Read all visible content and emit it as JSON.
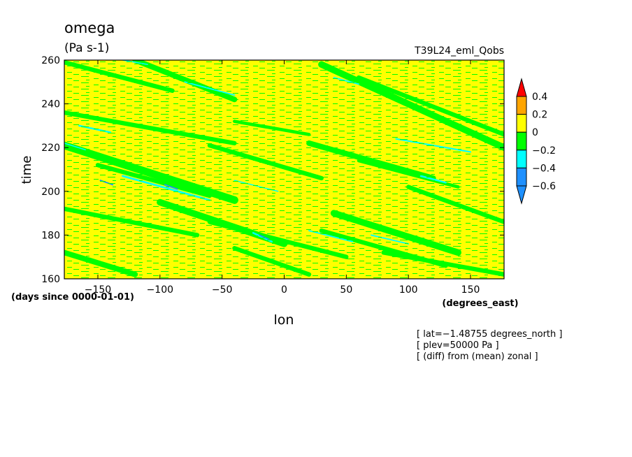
{
  "chart_data": {
    "type": "heatmap",
    "title": "omega",
    "units": "(Pa s-1)",
    "experiment": "T39L24_eml_Qobs",
    "xlabel": "lon",
    "x_units": "(degrees_east)",
    "ylabel": "time",
    "y_units": "(days since 0000-01-01)",
    "xlim": [
      -177,
      177
    ],
    "ylim": [
      160,
      260
    ],
    "x_ticks": [
      -150,
      -100,
      -50,
      0,
      50,
      100,
      150
    ],
    "x_tick_labels": [
      "−150",
      "−100",
      "−50",
      "0",
      "50",
      "100",
      "150"
    ],
    "y_ticks": [
      160,
      180,
      200,
      220,
      240,
      260
    ],
    "y_tick_labels": [
      "160",
      "180",
      "200",
      "220",
      "240",
      "260"
    ],
    "annotations": [
      "[ lat=−1.48755 degrees_north ]",
      "[ plev=50000 Pa ]",
      "[ (diff) from (mean) zonal ]"
    ],
    "colorbar": {
      "levels": [
        -0.6,
        -0.4,
        -0.2,
        0,
        0.2,
        0.4
      ],
      "level_labels": [
        "−0.6",
        "−0.4",
        "−0.2",
        "0",
        "0.2",
        "0.4"
      ],
      "colors": [
        "#1e90ff",
        "#00ffff",
        "#00ff00",
        "#ffff00",
        "#ffa500",
        "#ff0000"
      ],
      "under_color": "#1e90ff",
      "over_color": "#ff0000"
    },
    "background_class_color": "#ffff00",
    "bands": [
      {
        "lon_start": -120,
        "time_start": 260,
        "lon_end": -40,
        "time_end": 242,
        "width": 2.5,
        "color": "#00ff00"
      },
      {
        "lon_start": -177,
        "time_start": 259,
        "lon_end": -90,
        "time_end": 246,
        "width": 2.0,
        "color": "#00ff00"
      },
      {
        "lon_start": 30,
        "time_start": 258,
        "lon_end": 177,
        "time_end": 220,
        "width": 3.0,
        "color": "#00ff00"
      },
      {
        "lon_start": 60,
        "time_start": 252,
        "lon_end": 177,
        "time_end": 226,
        "width": 2.0,
        "color": "#00ff00"
      },
      {
        "lon_start": -177,
        "time_start": 236,
        "lon_end": -40,
        "time_end": 222,
        "width": 2.0,
        "color": "#00ff00"
      },
      {
        "lon_start": -40,
        "time_start": 232,
        "lon_end": 20,
        "time_end": 226,
        "width": 1.5,
        "color": "#00ff00"
      },
      {
        "lon_start": -177,
        "time_start": 221,
        "lon_end": -40,
        "time_end": 196,
        "width": 3.5,
        "color": "#00ff00"
      },
      {
        "lon_start": -150,
        "time_start": 212,
        "lon_end": -60,
        "time_end": 198,
        "width": 2.0,
        "color": "#00ff00"
      },
      {
        "lon_start": -60,
        "time_start": 221,
        "lon_end": 30,
        "time_end": 206,
        "width": 2.0,
        "color": "#00ff00"
      },
      {
        "lon_start": 20,
        "time_start": 222,
        "lon_end": 120,
        "time_end": 206,
        "width": 2.5,
        "color": "#00ff00"
      },
      {
        "lon_start": 60,
        "time_start": 214,
        "lon_end": 140,
        "time_end": 202,
        "width": 1.5,
        "color": "#00ff00"
      },
      {
        "lon_start": 100,
        "time_start": 202,
        "lon_end": 177,
        "time_end": 186,
        "width": 2.0,
        "color": "#00ff00"
      },
      {
        "lon_start": -177,
        "time_start": 192,
        "lon_end": -70,
        "time_end": 180,
        "width": 2.0,
        "color": "#00ff00"
      },
      {
        "lon_start": -100,
        "time_start": 195,
        "lon_end": 0,
        "time_end": 176,
        "width": 3.0,
        "color": "#00ff00"
      },
      {
        "lon_start": -60,
        "time_start": 186,
        "lon_end": 50,
        "time_end": 170,
        "width": 2.0,
        "color": "#00ff00"
      },
      {
        "lon_start": 40,
        "time_start": 190,
        "lon_end": 140,
        "time_end": 172,
        "width": 3.0,
        "color": "#00ff00"
      },
      {
        "lon_start": 30,
        "time_start": 182,
        "lon_end": 130,
        "time_end": 166,
        "width": 2.0,
        "color": "#00ff00"
      },
      {
        "lon_start": -177,
        "time_start": 172,
        "lon_end": -120,
        "time_end": 162,
        "width": 2.5,
        "color": "#00ff00"
      },
      {
        "lon_start": -40,
        "time_start": 174,
        "lon_end": 20,
        "time_end": 162,
        "width": 2.0,
        "color": "#00ff00"
      },
      {
        "lon_start": 80,
        "time_start": 172,
        "lon_end": 177,
        "time_end": 162,
        "width": 2.0,
        "color": "#00ff00"
      },
      {
        "lon_start": -130,
        "time_start": 207,
        "lon_end": -60,
        "time_end": 196,
        "width": 0.9,
        "color": "#00ffff"
      },
      {
        "lon_start": -165,
        "time_start": 230,
        "lon_end": -140,
        "time_end": 227,
        "width": 0.8,
        "color": "#00ffff"
      },
      {
        "lon_start": -25,
        "time_start": 181,
        "lon_end": -10,
        "time_end": 177,
        "width": 0.8,
        "color": "#00ffff"
      },
      {
        "lon_start": 20,
        "time_start": 182,
        "lon_end": 55,
        "time_end": 177,
        "width": 0.6,
        "color": "#00ffff"
      },
      {
        "lon_start": 70,
        "time_start": 180,
        "lon_end": 100,
        "time_end": 176,
        "width": 0.6,
        "color": "#00ffff"
      },
      {
        "lon_start": 110,
        "time_start": 207,
        "lon_end": 130,
        "time_end": 204,
        "width": 0.8,
        "color": "#00ffff"
      },
      {
        "lon_start": 90,
        "time_start": 224,
        "lon_end": 150,
        "time_end": 218,
        "width": 0.7,
        "color": "#00ffff"
      },
      {
        "lon_start": -80,
        "time_start": 250,
        "lon_end": -40,
        "time_end": 244,
        "width": 0.6,
        "color": "#00ffff"
      },
      {
        "lon_start": 40,
        "time_start": 252,
        "lon_end": 60,
        "time_end": 249,
        "width": 0.6,
        "color": "#00ffff"
      },
      {
        "lon_start": -130,
        "time_start": 260,
        "lon_end": -110,
        "time_end": 258,
        "width": 0.5,
        "color": "#00ffff"
      },
      {
        "lon_start": -40,
        "time_start": 205,
        "lon_end": -5,
        "time_end": 200,
        "width": 0.5,
        "color": "#00ffff"
      },
      {
        "lon_start": -177,
        "time_start": 222,
        "lon_end": -160,
        "time_end": 219,
        "width": 0.5,
        "color": "#00ffff"
      },
      {
        "lon_start": -148,
        "time_start": 205,
        "lon_end": -138,
        "time_end": 203,
        "width": 0.6,
        "color": "#1e90ff"
      },
      {
        "lon_start": -96,
        "time_start": 203,
        "lon_end": -86,
        "time_end": 201,
        "width": 0.6,
        "color": "#1e90ff"
      },
      {
        "lon_start": -20,
        "time_start": 180,
        "lon_end": -12,
        "time_end": 178,
        "width": 0.5,
        "color": "#1e90ff"
      }
    ]
  }
}
